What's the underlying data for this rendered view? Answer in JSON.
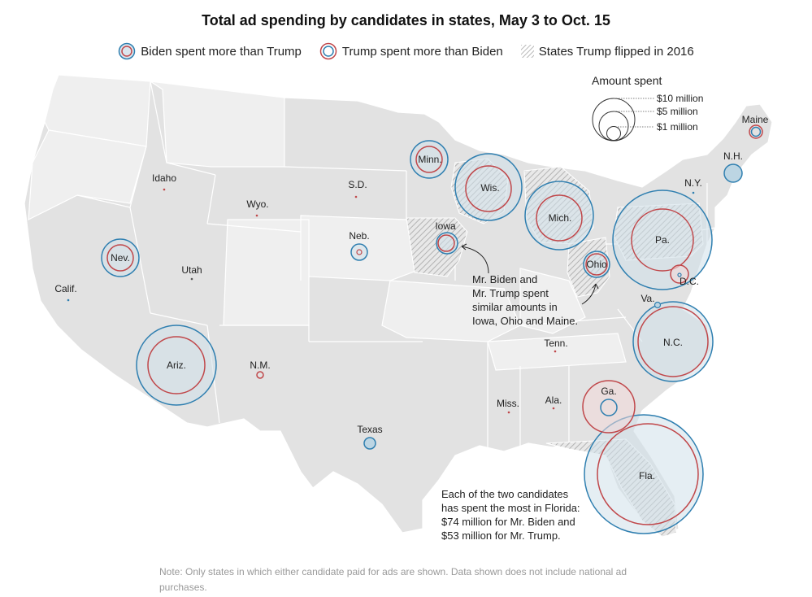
{
  "title": "Total ad spending by candidates in states, May 3 to Oct. 15",
  "legend": {
    "biden_more": "Biden spent more than Trump",
    "trump_more": "Trump spent more than Biden",
    "flipped": "States Trump flipped in 2016"
  },
  "size_legend": {
    "title": "Amount spent",
    "items": [
      "$10 million",
      "$5 million",
      "$1 million"
    ]
  },
  "colors": {
    "biden": "#2f7fb0",
    "trump": "#c0474a",
    "land": "#e3e3e3",
    "land_light": "#efefef",
    "border": "#ffffff",
    "hatch": "#b5b5b5"
  },
  "states": [
    {
      "label": "Minn.",
      "leader": "biden"
    },
    {
      "label": "Wis.",
      "leader": "biden"
    },
    {
      "label": "Mich.",
      "leader": "biden"
    },
    {
      "label": "Pa.",
      "leader": "biden"
    },
    {
      "label": "Iowa",
      "leader": "biden"
    },
    {
      "label": "Ohio",
      "leader": "biden"
    },
    {
      "label": "Maine",
      "leader": "trump"
    },
    {
      "label": "N.H.",
      "leader": "biden"
    },
    {
      "label": "N.Y.",
      "leader": "biden"
    },
    {
      "label": "D.C.",
      "leader": "trump"
    },
    {
      "label": "Va.",
      "leader": "biden"
    },
    {
      "label": "N.C.",
      "leader": "biden"
    },
    {
      "label": "Ga.",
      "leader": "trump"
    },
    {
      "label": "Fla.",
      "leader": "biden"
    },
    {
      "label": "Ariz.",
      "leader": "biden"
    },
    {
      "label": "Nev.",
      "leader": "biden"
    },
    {
      "label": "Neb.",
      "leader": "biden"
    },
    {
      "label": "Texas",
      "leader": "biden"
    },
    {
      "label": "N.M.",
      "leader": "trump"
    },
    {
      "label": "Idaho",
      "leader": "trump"
    },
    {
      "label": "Wyo.",
      "leader": "trump"
    },
    {
      "label": "S.D.",
      "leader": "trump"
    },
    {
      "label": "Utah",
      "leader": "trump"
    },
    {
      "label": "Calif.",
      "leader": "biden"
    },
    {
      "label": "Tenn.",
      "leader": "trump"
    },
    {
      "label": "Miss.",
      "leader": "trump"
    },
    {
      "label": "Ala.",
      "leader": "trump"
    }
  ],
  "annotations": {
    "midwest": [
      "Mr. Biden and",
      "Mr. Trump spent",
      "similar amounts in",
      "Iowa, Ohio and Maine."
    ],
    "florida": [
      "Each of the two candidates",
      "has spent the most in Florida:",
      "$74 million for Mr. Biden and",
      "$53 million for Mr. Trump."
    ]
  },
  "note": "Note: Only states in which either candidate paid for ads are shown. Data shown does not include national ad purchases."
}
